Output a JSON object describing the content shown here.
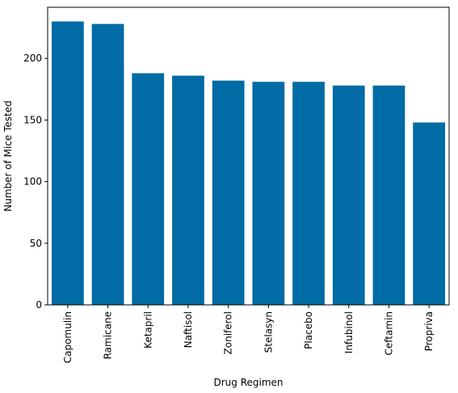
{
  "chart_data": {
    "type": "bar",
    "title": "",
    "xlabel": "Drug Regimen",
    "ylabel": "Number of Mice Tested",
    "categories": [
      "Capomulin",
      "Ramicane",
      "Ketapril",
      "Naftisol",
      "Zoniferol",
      "Stelasyn",
      "Placebo",
      "Infubinol",
      "Ceftamin",
      "Propriva"
    ],
    "values": [
      230,
      228,
      188,
      186,
      182,
      181,
      181,
      178,
      178,
      148
    ],
    "ylim": [
      0,
      241.5
    ],
    "yticks": [
      0,
      50,
      100,
      150,
      200
    ],
    "grid": false,
    "legend": "none",
    "bar_color": "#006BA4",
    "x_tick_rotation": "vertical"
  }
}
